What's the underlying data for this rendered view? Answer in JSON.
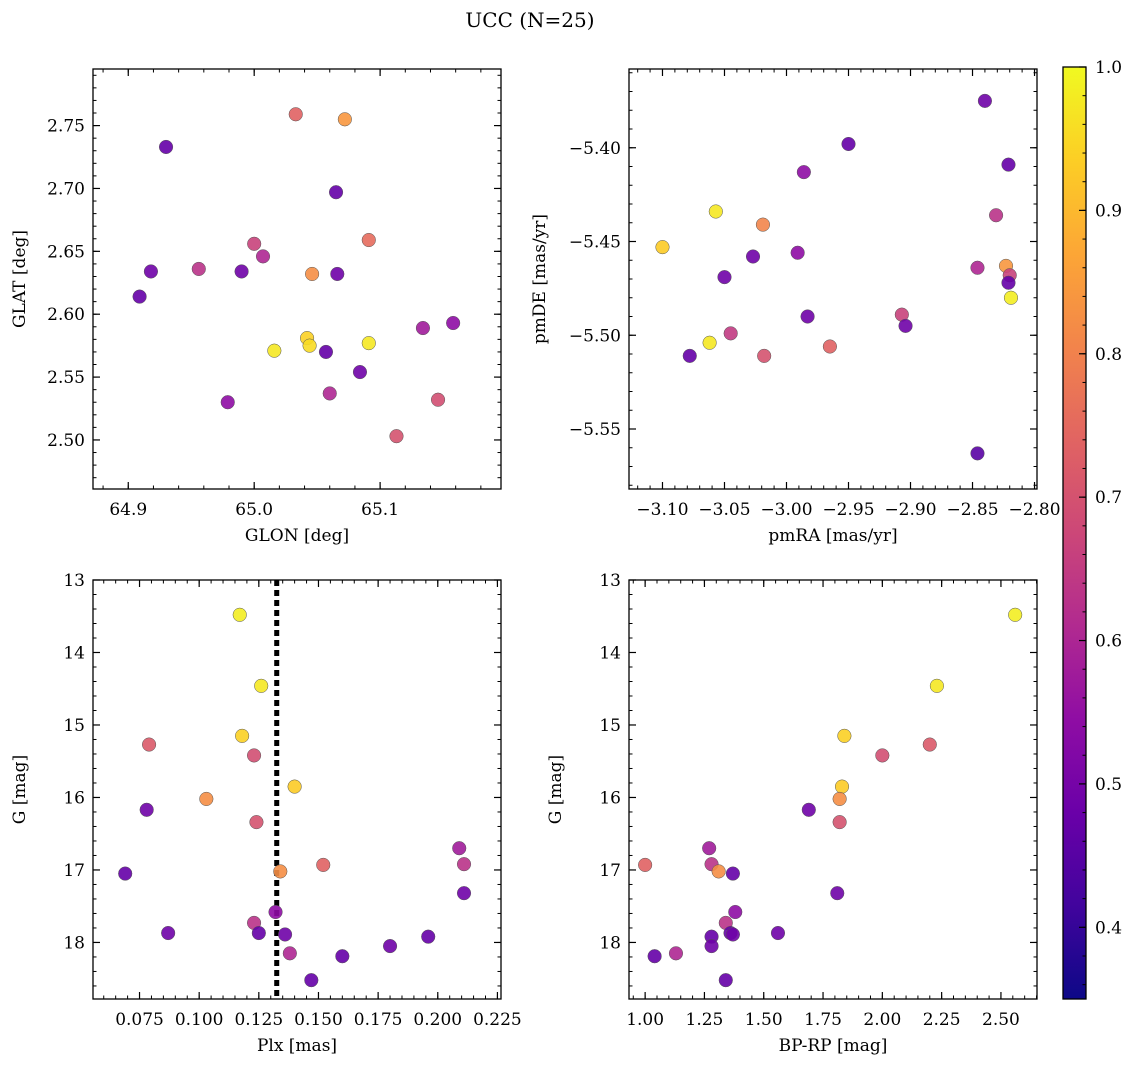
{
  "figure": {
    "title": "UCC (N=25)"
  },
  "colorbar": {
    "cmap": "plasma",
    "range": [
      0.35,
      1.0
    ],
    "ticks": [
      0.4,
      0.5,
      0.6,
      0.7,
      0.8,
      0.9,
      1.0
    ],
    "tick_labels": [
      "0.4",
      "0.5",
      "0.6",
      "0.7",
      "0.8",
      "0.9",
      "1.0"
    ]
  },
  "chart_data": [
    {
      "type": "scatter",
      "xlabel": "GLON [deg]",
      "ylabel": "GLAT [deg]",
      "xlim": [
        64.872,
        65.196
      ],
      "ylim": [
        2.461,
        2.795
      ],
      "xticks": [
        64.9,
        65.0,
        65.1
      ],
      "xtick_labels": [
        "64.9",
        "65.0",
        "65.1"
      ],
      "yticks": [
        2.5,
        2.55,
        2.6,
        2.65,
        2.7,
        2.75
      ],
      "ytick_labels": [
        "2.50",
        "2.55",
        "2.60",
        "2.65",
        "2.70",
        "2.75"
      ],
      "points": [
        {
          "x": 64.93,
          "y": 2.733,
          "c": 0.4
        },
        {
          "x": 64.918,
          "y": 2.634,
          "c": 0.42
        },
        {
          "x": 64.909,
          "y": 2.614,
          "c": 0.4
        },
        {
          "x": 64.956,
          "y": 2.636,
          "c": 0.58
        },
        {
          "x": 64.99,
          "y": 2.634,
          "c": 0.42
        },
        {
          "x": 65.0,
          "y": 2.656,
          "c": 0.62
        },
        {
          "x": 65.007,
          "y": 2.646,
          "c": 0.55
        },
        {
          "x": 64.979,
          "y": 2.53,
          "c": 0.48
        },
        {
          "x": 65.033,
          "y": 2.759,
          "c": 0.7
        },
        {
          "x": 65.072,
          "y": 2.755,
          "c": 0.82
        },
        {
          "x": 65.065,
          "y": 2.697,
          "c": 0.4
        },
        {
          "x": 65.091,
          "y": 2.659,
          "c": 0.72
        },
        {
          "x": 65.046,
          "y": 2.632,
          "c": 0.8
        },
        {
          "x": 65.066,
          "y": 2.632,
          "c": 0.42
        },
        {
          "x": 65.016,
          "y": 2.571,
          "c": 0.97
        },
        {
          "x": 65.042,
          "y": 2.581,
          "c": 0.93
        },
        {
          "x": 65.044,
          "y": 2.575,
          "c": 0.95
        },
        {
          "x": 65.057,
          "y": 2.57,
          "c": 0.4
        },
        {
          "x": 65.091,
          "y": 2.577,
          "c": 0.97
        },
        {
          "x": 65.134,
          "y": 2.589,
          "c": 0.52
        },
        {
          "x": 65.158,
          "y": 2.593,
          "c": 0.48
        },
        {
          "x": 65.084,
          "y": 2.554,
          "c": 0.42
        },
        {
          "x": 65.06,
          "y": 2.537,
          "c": 0.55
        },
        {
          "x": 65.146,
          "y": 2.532,
          "c": 0.65
        },
        {
          "x": 65.113,
          "y": 2.503,
          "c": 0.66
        }
      ]
    },
    {
      "type": "scatter",
      "xlabel": "pmRA [mas/yr]",
      "ylabel": "pmDE [mas/yr]",
      "xlim": [
        -3.127,
        -2.798
      ],
      "ylim": [
        -5.582,
        -5.358
      ],
      "xticks": [
        -3.1,
        -3.05,
        -3.0,
        -2.95,
        -2.9,
        -2.85,
        -2.8
      ],
      "xtick_labels": [
        "−3.10",
        "−3.05",
        "−3.00",
        "−2.95",
        "−2.90",
        "−2.85",
        "−2.80"
      ],
      "yticks": [
        -5.55,
        -5.5,
        -5.45,
        -5.4
      ],
      "ytick_labels": [
        "−5.55",
        "−5.50",
        "−5.45",
        "−5.40"
      ],
      "points": [
        {
          "x": -2.84,
          "y": -5.375,
          "c": 0.42
        },
        {
          "x": -2.95,
          "y": -5.398,
          "c": 0.4
        },
        {
          "x": -2.821,
          "y": -5.409,
          "c": 0.4
        },
        {
          "x": -2.986,
          "y": -5.413,
          "c": 0.48
        },
        {
          "x": -2.831,
          "y": -5.436,
          "c": 0.58
        },
        {
          "x": -3.057,
          "y": -5.434,
          "c": 0.97
        },
        {
          "x": -3.019,
          "y": -5.441,
          "c": 0.78
        },
        {
          "x": -3.1,
          "y": -5.453,
          "c": 0.92
        },
        {
          "x": -2.991,
          "y": -5.456,
          "c": 0.48
        },
        {
          "x": -3.027,
          "y": -5.458,
          "c": 0.42
        },
        {
          "x": -2.846,
          "y": -5.464,
          "c": 0.55
        },
        {
          "x": -2.823,
          "y": -5.463,
          "c": 0.82
        },
        {
          "x": -2.82,
          "y": -5.468,
          "c": 0.62
        },
        {
          "x": -3.05,
          "y": -5.469,
          "c": 0.42
        },
        {
          "x": -2.821,
          "y": -5.472,
          "c": 0.4
        },
        {
          "x": -2.819,
          "y": -5.48,
          "c": 0.98
        },
        {
          "x": -2.907,
          "y": -5.489,
          "c": 0.62
        },
        {
          "x": -2.983,
          "y": -5.49,
          "c": 0.42
        },
        {
          "x": -2.904,
          "y": -5.495,
          "c": 0.42
        },
        {
          "x": -3.045,
          "y": -5.499,
          "c": 0.6
        },
        {
          "x": -3.062,
          "y": -5.504,
          "c": 0.97
        },
        {
          "x": -2.965,
          "y": -5.506,
          "c": 0.7
        },
        {
          "x": -3.018,
          "y": -5.511,
          "c": 0.66
        },
        {
          "x": -3.078,
          "y": -5.511,
          "c": 0.4
        },
        {
          "x": -2.846,
          "y": -5.563,
          "c": 0.38
        }
      ]
    },
    {
      "type": "scatter",
      "xlabel": "Plx [mas]",
      "ylabel": "G [mag]",
      "xlim": [
        0.0555,
        0.2265
      ],
      "ylim": [
        18.78,
        13.0
      ],
      "y_inverted": true,
      "vline": 0.1325,
      "xticks": [
        0.075,
        0.1,
        0.125,
        0.15,
        0.175,
        0.2,
        0.225
      ],
      "xtick_labels": [
        "0.075",
        "0.100",
        "0.125",
        "0.150",
        "0.175",
        "0.200",
        "0.225"
      ],
      "yticks": [
        13,
        14,
        15,
        16,
        17,
        18
      ],
      "ytick_labels": [
        "13",
        "14",
        "15",
        "16",
        "17",
        "18"
      ],
      "points": [
        {
          "x": 0.117,
          "y": 13.48,
          "c": 0.98
        },
        {
          "x": 0.126,
          "y": 14.46,
          "c": 0.97
        },
        {
          "x": 0.079,
          "y": 15.27,
          "c": 0.68
        },
        {
          "x": 0.118,
          "y": 15.15,
          "c": 0.93
        },
        {
          "x": 0.123,
          "y": 15.42,
          "c": 0.65
        },
        {
          "x": 0.103,
          "y": 16.02,
          "c": 0.8
        },
        {
          "x": 0.14,
          "y": 15.85,
          "c": 0.92
        },
        {
          "x": 0.078,
          "y": 16.17,
          "c": 0.42
        },
        {
          "x": 0.124,
          "y": 16.34,
          "c": 0.66
        },
        {
          "x": 0.069,
          "y": 17.05,
          "c": 0.4
        },
        {
          "x": 0.134,
          "y": 17.02,
          "c": 0.8
        },
        {
          "x": 0.152,
          "y": 16.93,
          "c": 0.7
        },
        {
          "x": 0.209,
          "y": 16.7,
          "c": 0.52
        },
        {
          "x": 0.211,
          "y": 16.92,
          "c": 0.58
        },
        {
          "x": 0.211,
          "y": 17.32,
          "c": 0.42
        },
        {
          "x": 0.087,
          "y": 17.87,
          "c": 0.42
        },
        {
          "x": 0.123,
          "y": 17.73,
          "c": 0.58
        },
        {
          "x": 0.125,
          "y": 17.87,
          "c": 0.4
        },
        {
          "x": 0.132,
          "y": 17.58,
          "c": 0.48
        },
        {
          "x": 0.136,
          "y": 17.89,
          "c": 0.42
        },
        {
          "x": 0.138,
          "y": 18.15,
          "c": 0.55
        },
        {
          "x": 0.147,
          "y": 18.52,
          "c": 0.4
        },
        {
          "x": 0.16,
          "y": 18.19,
          "c": 0.4
        },
        {
          "x": 0.18,
          "y": 18.05,
          "c": 0.42
        },
        {
          "x": 0.196,
          "y": 17.92,
          "c": 0.4
        }
      ]
    },
    {
      "type": "scatter",
      "xlabel": "BP-RP [mag]",
      "ylabel": "G [mag]",
      "xlim": [
        0.932,
        2.652
      ],
      "ylim": [
        18.78,
        13.0
      ],
      "y_inverted": true,
      "xticks": [
        1.0,
        1.25,
        1.5,
        1.75,
        2.0,
        2.25,
        2.5
      ],
      "xtick_labels": [
        "1.00",
        "1.25",
        "1.50",
        "1.75",
        "2.00",
        "2.25",
        "2.50"
      ],
      "yticks": [
        13,
        14,
        15,
        16,
        17,
        18
      ],
      "ytick_labels": [
        "13",
        "14",
        "15",
        "16",
        "17",
        "18"
      ],
      "points": [
        {
          "x": 2.56,
          "y": 13.48,
          "c": 0.98
        },
        {
          "x": 2.23,
          "y": 14.46,
          "c": 0.97
        },
        {
          "x": 2.2,
          "y": 15.27,
          "c": 0.68
        },
        {
          "x": 2.0,
          "y": 15.42,
          "c": 0.65
        },
        {
          "x": 1.84,
          "y": 15.15,
          "c": 0.93
        },
        {
          "x": 1.83,
          "y": 15.85,
          "c": 0.92
        },
        {
          "x": 1.82,
          "y": 16.02,
          "c": 0.8
        },
        {
          "x": 1.82,
          "y": 16.34,
          "c": 0.66
        },
        {
          "x": 1.69,
          "y": 16.17,
          "c": 0.42
        },
        {
          "x": 1.81,
          "y": 17.32,
          "c": 0.42
        },
        {
          "x": 1.0,
          "y": 16.93,
          "c": 0.7
        },
        {
          "x": 1.27,
          "y": 16.7,
          "c": 0.52
        },
        {
          "x": 1.28,
          "y": 16.92,
          "c": 0.58
        },
        {
          "x": 1.31,
          "y": 17.02,
          "c": 0.8
        },
        {
          "x": 1.37,
          "y": 17.05,
          "c": 0.4
        },
        {
          "x": 1.38,
          "y": 17.58,
          "c": 0.48
        },
        {
          "x": 1.34,
          "y": 17.73,
          "c": 0.58
        },
        {
          "x": 1.36,
          "y": 17.87,
          "c": 0.4
        },
        {
          "x": 1.37,
          "y": 17.89,
          "c": 0.42
        },
        {
          "x": 1.56,
          "y": 17.87,
          "c": 0.42
        },
        {
          "x": 1.28,
          "y": 17.92,
          "c": 0.4
        },
        {
          "x": 1.28,
          "y": 18.05,
          "c": 0.42
        },
        {
          "x": 1.13,
          "y": 18.15,
          "c": 0.55
        },
        {
          "x": 1.04,
          "y": 18.19,
          "c": 0.4
        },
        {
          "x": 1.34,
          "y": 18.52,
          "c": 0.4
        }
      ]
    }
  ]
}
